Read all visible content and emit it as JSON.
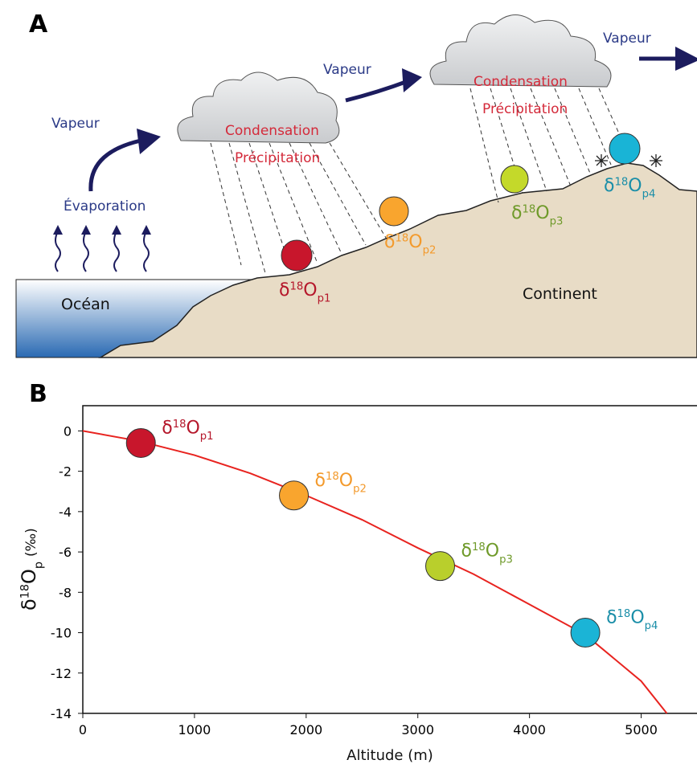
{
  "panel_a": {
    "label": "A",
    "vapeur": [
      "Vapeur",
      "Vapeur",
      "Vapeur"
    ],
    "evaporation": "Évaporation",
    "condensation": [
      "Condensation",
      "Condensation"
    ],
    "precipitation": [
      "Précipitation",
      "Précipitation"
    ],
    "ocean": "Océan",
    "continent": "Continent",
    "isotope_labels": [
      {
        "base": "δ",
        "sup": "18",
        "main": "O",
        "sub": "p1",
        "color": "#b5172b"
      },
      {
        "base": "δ",
        "sup": "18",
        "main": "O",
        "sub": "p2",
        "color": "#f39a2c"
      },
      {
        "base": "δ",
        "sup": "18",
        "main": "O",
        "sub": "p3",
        "color": "#6f9a2a"
      },
      {
        "base": "δ",
        "sup": "18",
        "main": "O",
        "sub": "p4",
        "color": "#1a8ea8"
      }
    ]
  },
  "chart_data": {
    "type": "scatter",
    "panel_label": "B",
    "x_label": "Altitude (m)",
    "y_label": {
      "base": "δ",
      "sup": "18",
      "main": "O",
      "sub": "p",
      "unit": "(‰)"
    },
    "xlim": [
      0,
      5500
    ],
    "ylim": [
      -14,
      1.25
    ],
    "xticks": [
      0,
      1000,
      2000,
      3000,
      4000,
      5000
    ],
    "yticks": [
      0,
      -2,
      -4,
      -6,
      -8,
      -10,
      -12,
      -14
    ],
    "curve": {
      "color": "#e8231f",
      "x": [
        0,
        500,
        1000,
        1500,
        2000,
        2500,
        3000,
        3500,
        4000,
        4500,
        5000,
        5230
      ],
      "values": [
        0,
        -0.5,
        -1.2,
        -2.1,
        -3.2,
        -4.4,
        -5.8,
        -7.1,
        -8.6,
        -10.1,
        -12.4,
        -14
      ]
    },
    "series": [
      {
        "name": {
          "base": "δ",
          "sup": "18",
          "main": "O",
          "sub": "p1"
        },
        "color": "#c8162c",
        "label_color": "#b5172b",
        "x": [
          520
        ],
        "values": [
          -0.6
        ]
      },
      {
        "name": {
          "base": "δ",
          "sup": "18",
          "main": "O",
          "sub": "p2"
        },
        "color": "#f9a52e",
        "label_color": "#f39a2c",
        "x": [
          1890
        ],
        "values": [
          -3.2
        ]
      },
      {
        "name": {
          "base": "δ",
          "sup": "18",
          "main": "O",
          "sub": "p3"
        },
        "color": "#b9cf2c",
        "label_color": "#6f9a2a",
        "x": [
          3200
        ],
        "values": [
          -6.7
        ]
      },
      {
        "name": {
          "base": "δ",
          "sup": "18",
          "main": "O",
          "sub": "p4"
        },
        "color": "#1bb4d6",
        "label_color": "#1a8ea8",
        "x": [
          4500
        ],
        "values": [
          -10.0
        ]
      }
    ]
  }
}
